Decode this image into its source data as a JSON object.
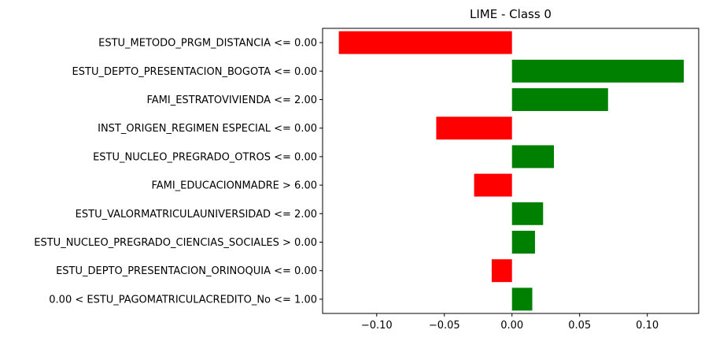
{
  "chart_data": {
    "type": "bar",
    "orientation": "horizontal",
    "title": "LIME - Class 0",
    "xlabel": "",
    "ylabel": "",
    "xlim": [
      -0.14,
      0.138
    ],
    "xticks": [
      -0.1,
      -0.05,
      0.0,
      0.05,
      0.1
    ],
    "xtick_labels": [
      "−0.10",
      "−0.05",
      "0.00",
      "0.05",
      "0.10"
    ],
    "grid": false,
    "positive_color": "#008000",
    "negative_color": "#ff0000",
    "categories": [
      "ESTU_METODO_PRGM_DISTANCIA <= 0.00",
      "ESTU_DEPTO_PRESENTACION_BOGOTA <= 0.00",
      "FAMI_ESTRATOVIVIENDA <= 2.00",
      "INST_ORIGEN_REGIMEN ESPECIAL <= 0.00",
      "ESTU_NUCLEO_PREGRADO_OTROS <= 0.00",
      "FAMI_EDUCACIONMADRE > 6.00",
      "ESTU_VALORMATRICULAUNIVERSIDAD <= 2.00",
      "ESTU_NUCLEO_PREGRADO_CIENCIAS_SOCIALES > 0.00",
      "ESTU_DEPTO_PRESENTACION_ORINOQUIA <= 0.00",
      "0.00 < ESTU_PAGOMATRICULACREDITO_No <= 1.00"
    ],
    "values": [
      -0.128,
      0.127,
      0.071,
      -0.056,
      0.031,
      -0.028,
      0.023,
      0.017,
      -0.015,
      0.015
    ]
  }
}
